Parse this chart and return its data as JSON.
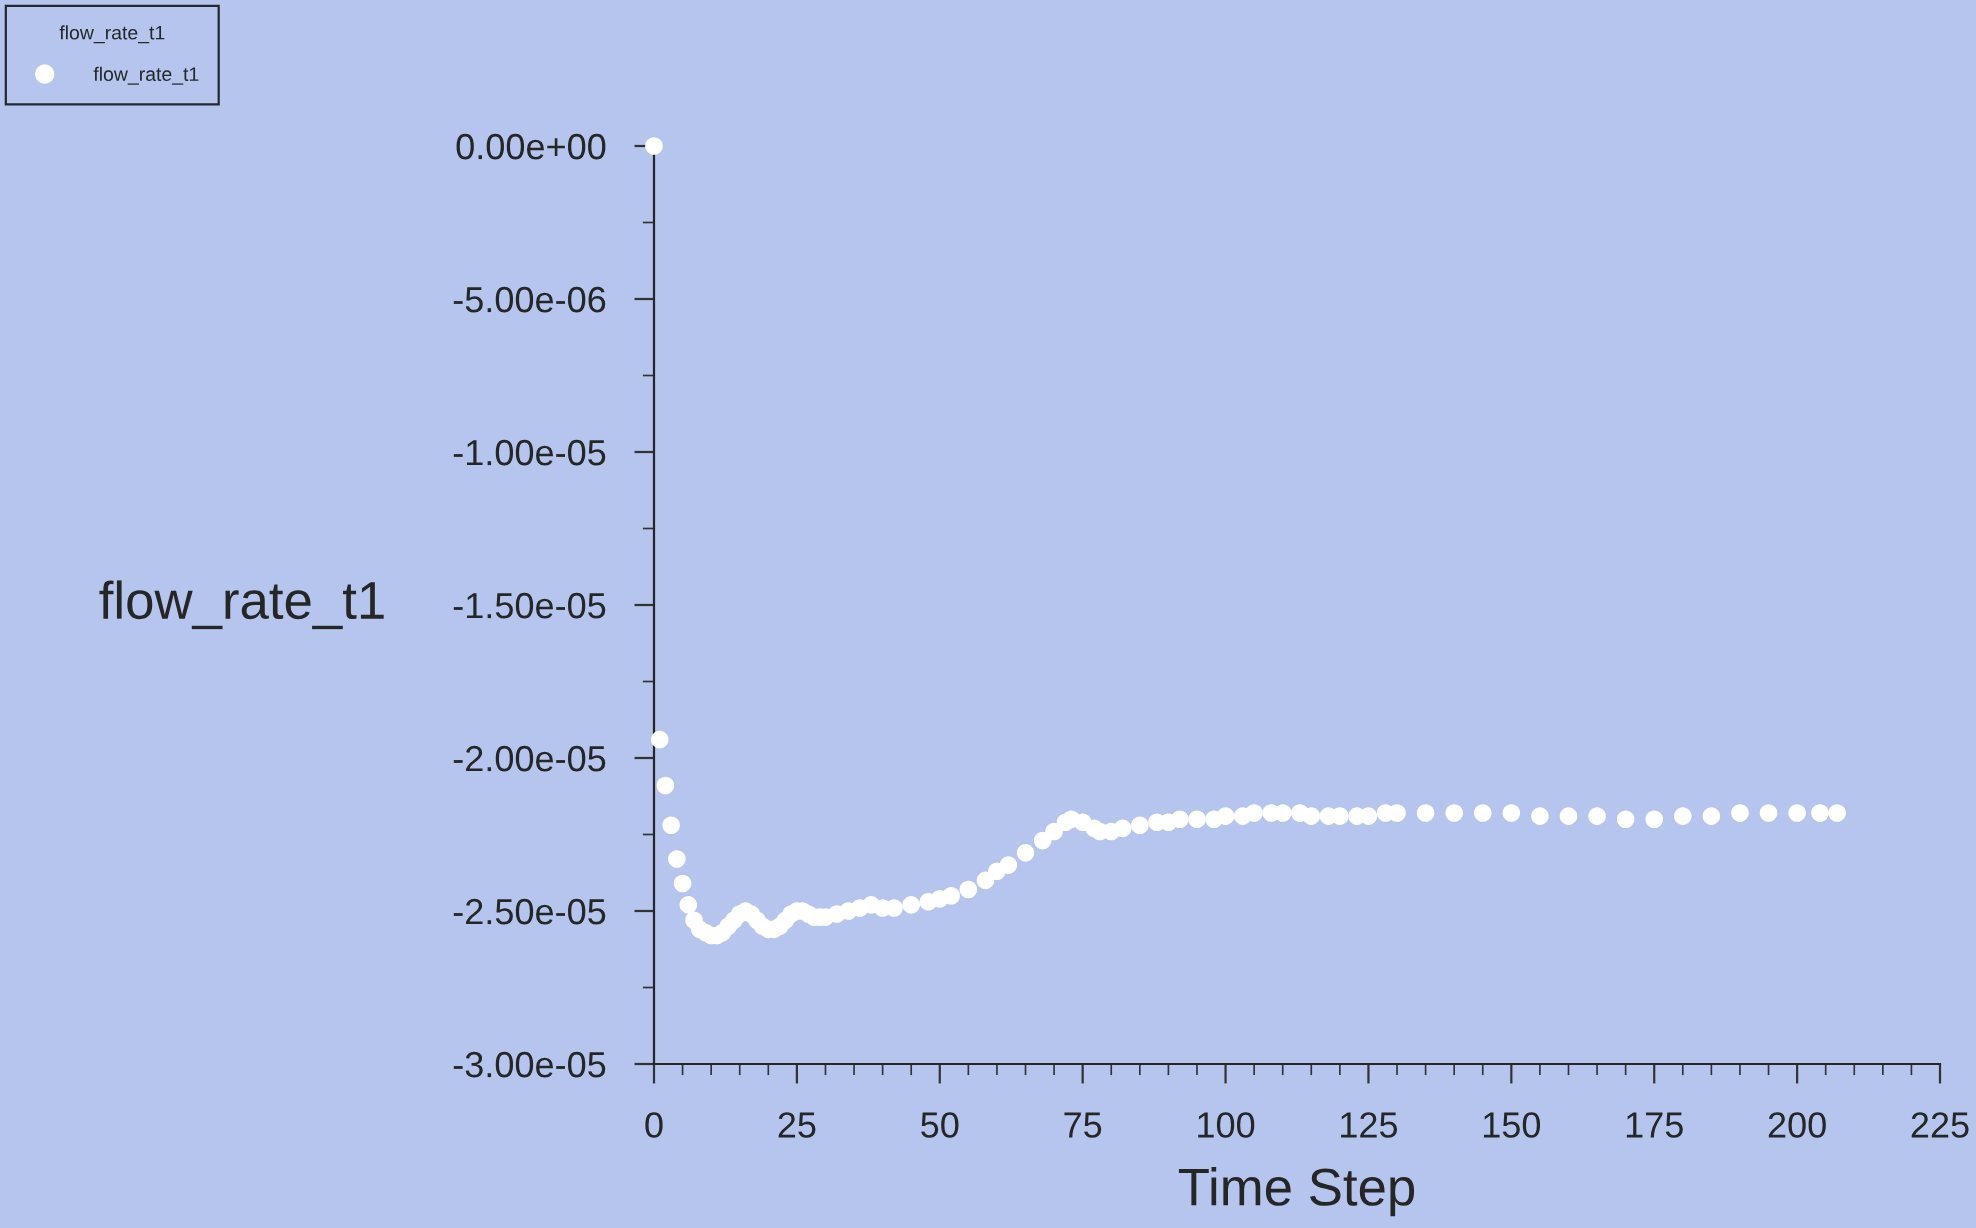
{
  "chart_data": {
    "type": "scatter",
    "xlabel": "Time Step",
    "ylabel": "flow_rate_t1",
    "legend_title": "flow_rate_t1",
    "legend": "top left",
    "marker": "circle",
    "grid": false,
    "series": [
      {
        "name": "flow_rate_t1",
        "color": "#ffffff",
        "x": [
          0,
          1,
          2,
          3,
          4,
          5,
          6,
          7,
          8,
          9,
          10,
          11,
          12,
          13,
          14,
          15,
          16,
          17,
          18,
          19,
          20,
          21,
          22,
          23,
          24,
          25,
          26,
          27,
          28,
          29,
          30,
          32,
          34,
          36,
          38,
          40,
          42,
          45,
          48,
          50,
          52,
          55,
          58,
          60,
          62,
          65,
          68,
          70,
          72,
          73,
          75,
          77,
          78,
          80,
          82,
          85,
          88,
          90,
          92,
          95,
          98,
          100,
          103,
          105,
          108,
          110,
          113,
          115,
          118,
          120,
          123,
          125,
          128,
          130,
          135,
          140,
          145,
          150,
          155,
          160,
          165,
          170,
          175,
          180,
          185,
          190,
          195,
          200,
          204,
          207
        ],
        "values": [
          0,
          -1.94e-05,
          -2.09e-05,
          -2.22e-05,
          -2.33e-05,
          -2.41e-05,
          -2.48e-05,
          -2.53e-05,
          -2.56e-05,
          -2.57e-05,
          -2.58e-05,
          -2.58e-05,
          -2.57e-05,
          -2.55e-05,
          -2.53e-05,
          -2.51e-05,
          -2.5e-05,
          -2.51e-05,
          -2.53e-05,
          -2.55e-05,
          -2.56e-05,
          -2.56e-05,
          -2.55e-05,
          -2.53e-05,
          -2.51e-05,
          -2.5e-05,
          -2.5e-05,
          -2.51e-05,
          -2.52e-05,
          -2.52e-05,
          -2.52e-05,
          -2.51e-05,
          -2.5e-05,
          -2.49e-05,
          -2.48e-05,
          -2.49e-05,
          -2.49e-05,
          -2.48e-05,
          -2.47e-05,
          -2.46e-05,
          -2.45e-05,
          -2.43e-05,
          -2.4e-05,
          -2.37e-05,
          -2.35e-05,
          -2.31e-05,
          -2.27e-05,
          -2.24e-05,
          -2.21e-05,
          -2.2e-05,
          -2.21e-05,
          -2.23e-05,
          -2.24e-05,
          -2.24e-05,
          -2.23e-05,
          -2.22e-05,
          -2.21e-05,
          -2.21e-05,
          -2.2e-05,
          -2.2e-05,
          -2.2e-05,
          -2.19e-05,
          -2.19e-05,
          -2.18e-05,
          -2.18e-05,
          -2.18e-05,
          -2.18e-05,
          -2.19e-05,
          -2.19e-05,
          -2.19e-05,
          -2.19e-05,
          -2.19e-05,
          -2.18e-05,
          -2.18e-05,
          -2.18e-05,
          -2.18e-05,
          -2.18e-05,
          -2.18e-05,
          -2.19e-05,
          -2.19e-05,
          -2.19e-05,
          -2.2e-05,
          -2.2e-05,
          -2.19e-05,
          -2.19e-05,
          -2.18e-05,
          -2.18e-05,
          -2.18e-05,
          -2.18e-05,
          -2.18e-05
        ]
      }
    ],
    "xlim": [
      0,
      225
    ],
    "xticks": [
      0,
      25,
      50,
      75,
      100,
      125,
      150,
      175,
      200,
      225
    ],
    "ylim": [
      -3e-05,
      0
    ],
    "yticks": [
      {
        "value": -3e-05,
        "label": "-3.00e-05"
      },
      {
        "value": -2.5e-05,
        "label": "-2.50e-05"
      },
      {
        "value": -2e-05,
        "label": "-2.00e-05"
      },
      {
        "value": -1.5e-05,
        "label": "-1.50e-05"
      },
      {
        "value": -1e-05,
        "label": "-1.00e-05"
      },
      {
        "value": -5e-06,
        "label": "-5.00e-06"
      },
      {
        "value": 0,
        "label": "0.00e+00"
      }
    ]
  }
}
